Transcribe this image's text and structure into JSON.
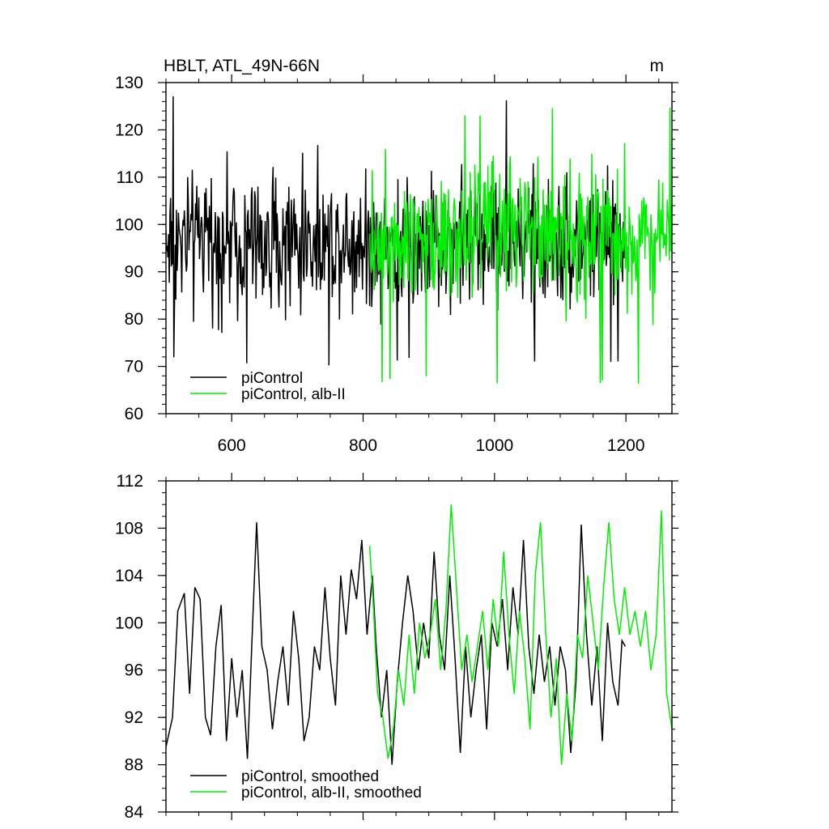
{
  "chart_data": [
    {
      "type": "line",
      "title": "HBLT, ATL_49N-66N",
      "unit_label": "m",
      "xlim": [
        500,
        1270
      ],
      "ylim": [
        60,
        130
      ],
      "x_ticks": [
        "600",
        "800",
        "1000",
        "1200"
      ],
      "y_ticks": [
        "60",
        "70",
        "80",
        "90",
        "100",
        "110",
        "120",
        "130"
      ],
      "grid": false,
      "legend_position": "bottom-left",
      "series": [
        {
          "name": "piControl",
          "color": "#000000",
          "x_start": 500,
          "x_end": 1199,
          "mean": 96.5,
          "values_summary": "yearly values fluctuating between about 70 and 128",
          "x_range": [
            500,
            1199
          ],
          "y_range": [
            70,
            128
          ]
        },
        {
          "name": "piControl, alb-II",
          "color": "#00ee00",
          "x_start": 810,
          "x_end": 1270,
          "mean": 98.5,
          "values_summary": "yearly values fluctuating between about 66 and 125",
          "x_range": [
            810,
            1270
          ],
          "y_range": [
            66,
            125
          ]
        }
      ]
    },
    {
      "type": "line",
      "title": "",
      "xlim": [
        500,
        1270
      ],
      "ylim": [
        84,
        112
      ],
      "y_ticks": [
        "84",
        "88",
        "92",
        "96",
        "100",
        "104",
        "108",
        "112"
      ],
      "grid": false,
      "legend_position": "bottom-left",
      "series": [
        {
          "name": "piControl, smoothed",
          "color": "#000000",
          "x_start": 500,
          "x_end": 1199,
          "points": [
            [
              500,
              89.5
            ],
            [
              510,
              92
            ],
            [
              518,
              101
            ],
            [
              528,
              102.5
            ],
            [
              536,
              94
            ],
            [
              544,
              103
            ],
            [
              552,
              102
            ],
            [
              560,
              92
            ],
            [
              568,
              90.5
            ],
            [
              576,
              98
            ],
            [
              584,
              101.5
            ],
            [
              592,
              90
            ],
            [
              600,
              97
            ],
            [
              608,
              92
            ],
            [
              616,
              96
            ],
            [
              624,
              88.5
            ],
            [
              632,
              100
            ],
            [
              638,
              108.5
            ],
            [
              646,
              98
            ],
            [
              654,
              96
            ],
            [
              662,
              91
            ],
            [
              670,
              95
            ],
            [
              678,
              98
            ],
            [
              686,
              93
            ],
            [
              694,
              101
            ],
            [
              702,
              97
            ],
            [
              710,
              90
            ],
            [
              718,
              92
            ],
            [
              726,
              98
            ],
            [
              734,
              96
            ],
            [
              742,
              103
            ],
            [
              750,
              97
            ],
            [
              758,
              93
            ],
            [
              766,
              104
            ],
            [
              774,
              99
            ],
            [
              782,
              104.5
            ],
            [
              790,
              102
            ],
            [
              798,
              107
            ],
            [
              806,
              99
            ],
            [
              814,
              104
            ],
            [
              820,
              98
            ],
            [
              828,
              92
            ],
            [
              836,
              96
            ],
            [
              844,
              88
            ],
            [
              852,
              95
            ],
            [
              860,
              100
            ],
            [
              868,
              104
            ],
            [
              876,
              101
            ],
            [
              884,
              96
            ],
            [
              892,
              100
            ],
            [
              900,
              97
            ],
            [
              908,
              106
            ],
            [
              916,
              99
            ],
            [
              924,
              96
            ],
            [
              932,
              104
            ],
            [
              940,
              97
            ],
            [
              948,
              89
            ],
            [
              956,
              98
            ],
            [
              964,
              92
            ],
            [
              972,
              96
            ],
            [
              980,
              99
            ],
            [
              988,
              91
            ],
            [
              996,
              100
            ],
            [
              1004,
              98
            ],
            [
              1012,
              102
            ],
            [
              1020,
              96
            ],
            [
              1028,
              103
            ],
            [
              1036,
              99
            ],
            [
              1044,
              107
            ],
            [
              1052,
              98
            ],
            [
              1060,
              94
            ],
            [
              1068,
              99
            ],
            [
              1076,
              95
            ],
            [
              1084,
              98
            ],
            [
              1092,
              93
            ],
            [
              1100,
              98
            ],
            [
              1108,
              96
            ],
            [
              1116,
              89
            ],
            [
              1124,
              95
            ],
            [
              1132,
              108.3
            ],
            [
              1140,
              99
            ],
            [
              1148,
              93
            ],
            [
              1156,
              98
            ],
            [
              1164,
              90
            ],
            [
              1172,
              100
            ],
            [
              1180,
              95
            ],
            [
              1188,
              93
            ],
            [
              1194,
              98.5
            ],
            [
              1199,
              98
            ]
          ]
        },
        {
          "name": "piControl, alb-II, smoothed",
          "color": "#00ee00",
          "x_start": 810,
          "x_end": 1270,
          "points": [
            [
              810,
              106.5
            ],
            [
              816,
              101
            ],
            [
              822,
              94
            ],
            [
              830,
              92
            ],
            [
              838,
              88.5
            ],
            [
              846,
              91
            ],
            [
              854,
              96
            ],
            [
              862,
              93
            ],
            [
              870,
              99
            ],
            [
              878,
              94
            ],
            [
              886,
              100
            ],
            [
              894,
              97
            ],
            [
              902,
              99
            ],
            [
              910,
              102
            ],
            [
              918,
              96
            ],
            [
              926,
              101
            ],
            [
              934,
              110
            ],
            [
              942,
              103
            ],
            [
              950,
              96
            ],
            [
              958,
              99
            ],
            [
              966,
              95
            ],
            [
              974,
              98
            ],
            [
              982,
              101
            ],
            [
              990,
              96
            ],
            [
              998,
              102
            ],
            [
              1006,
              98
            ],
            [
              1014,
              106
            ],
            [
              1022,
              99
            ],
            [
              1030,
              94
            ],
            [
              1038,
              101
            ],
            [
              1046,
              97
            ],
            [
              1054,
              91
            ],
            [
              1062,
              104
            ],
            [
              1070,
              108.5
            ],
            [
              1078,
              99
            ],
            [
              1086,
              92
            ],
            [
              1094,
              97
            ],
            [
              1102,
              88
            ],
            [
              1110,
              94
            ],
            [
              1118,
              90
            ],
            [
              1126,
              99
            ],
            [
              1134,
              97
            ],
            [
              1142,
              104
            ],
            [
              1150,
              100
            ],
            [
              1158,
              96
            ],
            [
              1166,
              103
            ],
            [
              1174,
              108.5
            ],
            [
              1182,
              102
            ],
            [
              1190,
              99
            ],
            [
              1198,
              103
            ],
            [
              1206,
              99
            ],
            [
              1214,
              101
            ],
            [
              1222,
              98
            ],
            [
              1230,
              101
            ],
            [
              1238,
              96
            ],
            [
              1246,
              99
            ],
            [
              1254,
              109.5
            ],
            [
              1262,
              94
            ],
            [
              1270,
              91
            ]
          ]
        }
      ]
    }
  ]
}
